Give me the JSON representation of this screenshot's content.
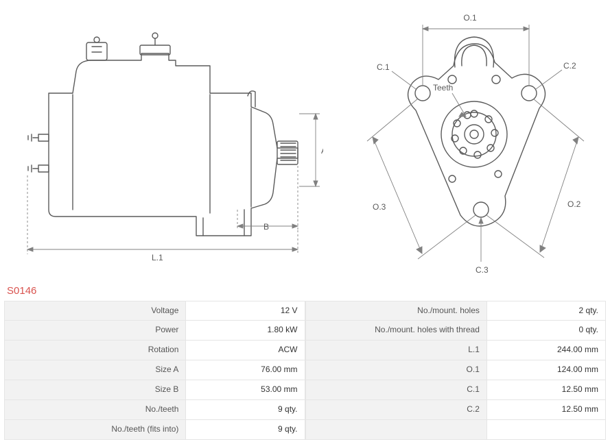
{
  "part_number": "S0146",
  "diagram": {
    "stroke": "#5a5a5a",
    "stroke_width": 1.4,
    "dim_stroke": "#808080",
    "dim_stroke_width": 0.9,
    "label_color": "#5a5a5a",
    "label_fontsize": 12,
    "labels": {
      "A": "A",
      "B": "B",
      "L1": "L.1",
      "O1": "O.1",
      "O2": "O.2",
      "O3": "O.3",
      "C1": "C.1",
      "C2": "C.2",
      "C3": "C.3",
      "Teeth": "Teeth"
    }
  },
  "specs_left": [
    {
      "label": "Voltage",
      "value": "12 V"
    },
    {
      "label": "Power",
      "value": "1.80 kW"
    },
    {
      "label": "Rotation",
      "value": "ACW"
    },
    {
      "label": "Size A",
      "value": "76.00 mm"
    },
    {
      "label": "Size B",
      "value": "53.00 mm"
    },
    {
      "label": "No./teeth",
      "value": "9 qty."
    },
    {
      "label": "No./teeth (fits into)",
      "value": "9 qty."
    }
  ],
  "specs_right": [
    {
      "label": "No./mount. holes",
      "value": "2 qty."
    },
    {
      "label": "No./mount. holes with thread",
      "value": "0 qty."
    },
    {
      "label": "L.1",
      "value": "244.00 mm"
    },
    {
      "label": "O.1",
      "value": "124.00 mm"
    },
    {
      "label": "C.1",
      "value": "12.50 mm"
    },
    {
      "label": "C.2",
      "value": "12.50 mm"
    },
    {
      "label": "",
      "value": ""
    }
  ],
  "colors": {
    "part_number": "#d9534f",
    "row_bg": "#f2f2f2",
    "border": "#e5e5e5",
    "text": "#555555"
  }
}
